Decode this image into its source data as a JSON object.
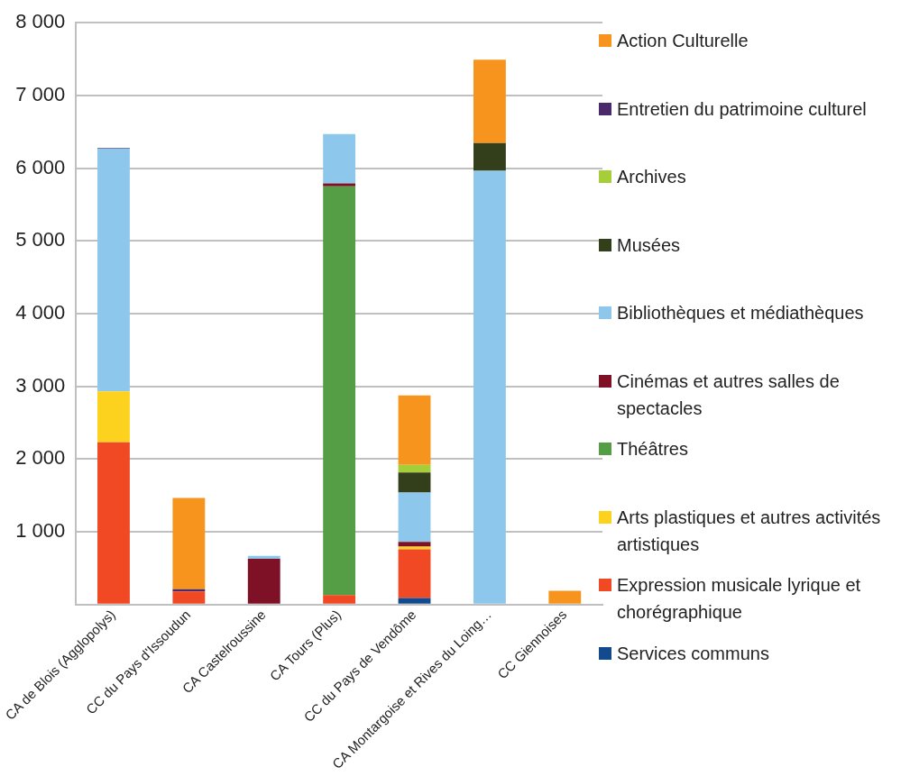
{
  "chart_data": {
    "type": "bar",
    "stacked": true,
    "grid": "y",
    "legend": "right",
    "categories": [
      "CA de Blois (Agglopolys)",
      "CC du Pays d'Issoudun",
      "CA Castelroussine",
      "CA Tours (Plus)",
      "CC du Pays de Vendôme",
      "CA Montargoise et Rives du Loing…",
      "CC Giennoises"
    ],
    "ylim": [
      0,
      8000
    ],
    "yticks": [
      {
        "value": 0,
        "label": null
      },
      {
        "value": 1000,
        "label": "1 000"
      },
      {
        "value": 2000,
        "label": "2 000"
      },
      {
        "value": 3000,
        "label": "3 000"
      },
      {
        "value": 4000,
        "label": "4 000"
      },
      {
        "value": 5000,
        "label": "5 000"
      },
      {
        "value": 6000,
        "label": "6 000"
      },
      {
        "value": 7000,
        "label": "7 000"
      },
      {
        "value": 8000,
        "label": "8 000"
      }
    ],
    "series": [
      {
        "name": "Services communs",
        "color": "#134a8d",
        "values": [
          null,
          null,
          null,
          null,
          90,
          null,
          null
        ]
      },
      {
        "name": "Expression musicale lyrique et chorégraphique",
        "color": "#f04923",
        "values": [
          2230,
          180,
          null,
          130,
          670,
          null,
          null
        ]
      },
      {
        "name": "Arts plastiques et autres activités artistiques",
        "color": "#fdd21f",
        "values": [
          700,
          null,
          null,
          null,
          35,
          null,
          null
        ]
      },
      {
        "name": "Théâtres",
        "color": "#559e45",
        "values": [
          null,
          null,
          null,
          5620,
          null,
          null,
          null
        ]
      },
      {
        "name": "Cinémas et autres salles de spectacles",
        "color": "#7f1126",
        "values": [
          null,
          null,
          630,
          40,
          65,
          null,
          null
        ]
      },
      {
        "name": "Bibliothèques et médiathèques",
        "color": "#8dc8ec",
        "values": [
          3340,
          null,
          40,
          680,
          680,
          5965,
          null
        ]
      },
      {
        "name": "Musées",
        "color": "#333f1a",
        "values": [
          null,
          null,
          null,
          null,
          275,
          380,
          null
        ]
      },
      {
        "name": "Archives",
        "color": "#a6ce39",
        "values": [
          null,
          null,
          null,
          null,
          105,
          null,
          null
        ]
      },
      {
        "name": "Entretien du patrimoine culturel",
        "color": "#4b2a6b",
        "values": [
          10,
          30,
          null,
          null,
          null,
          null,
          null
        ]
      },
      {
        "name": "Action Culturelle",
        "color": "#f7941d",
        "values": [
          null,
          1255,
          null,
          null,
          955,
          1145,
          190
        ]
      }
    ]
  }
}
